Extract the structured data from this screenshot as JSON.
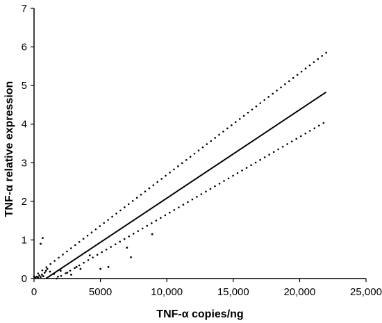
{
  "chart_data": {
    "type": "scatter",
    "title": "",
    "xlabel": "TNF-α copies/ng",
    "ylabel": "TNF-α relative expression",
    "xlim": [
      0,
      25000
    ],
    "ylim": [
      0,
      7
    ],
    "x_ticks": [
      {
        "value": 0,
        "label": "0"
      },
      {
        "value": 5000,
        "label": "5000"
      },
      {
        "value": 10000,
        "label": "10,000"
      },
      {
        "value": 15000,
        "label": "15,000"
      },
      {
        "value": 20000,
        "label": "20,000"
      },
      {
        "value": 25000,
        "label": "25,000"
      }
    ],
    "y_ticks": [
      {
        "value": 0,
        "label": "0"
      },
      {
        "value": 1,
        "label": "1"
      },
      {
        "value": 2,
        "label": "2"
      },
      {
        "value": 3,
        "label": "3"
      },
      {
        "value": 4,
        "label": "4"
      },
      {
        "value": 5,
        "label": "5"
      },
      {
        "value": 6,
        "label": "6"
      },
      {
        "value": 7,
        "label": "7"
      }
    ],
    "grid": false,
    "points": [
      {
        "x": 100,
        "y": 0.02
      },
      {
        "x": 200,
        "y": 0.05
      },
      {
        "x": 300,
        "y": 0.03
      },
      {
        "x": 400,
        "y": 0.08
      },
      {
        "x": 500,
        "y": 0.04
      },
      {
        "x": 600,
        "y": 0.1
      },
      {
        "x": 700,
        "y": 0.06
      },
      {
        "x": 800,
        "y": 0.15
      },
      {
        "x": 900,
        "y": 0.2
      },
      {
        "x": 1000,
        "y": 0.25
      },
      {
        "x": 1200,
        "y": 0.18
      },
      {
        "x": 1500,
        "y": 0.12
      },
      {
        "x": 1800,
        "y": 0.05
      },
      {
        "x": 2000,
        "y": 0.2
      },
      {
        "x": 2500,
        "y": 0.15
      },
      {
        "x": 2800,
        "y": 0.1
      },
      {
        "x": 3200,
        "y": 0.3
      },
      {
        "x": 3500,
        "y": 0.25
      },
      {
        "x": 4200,
        "y": 0.6
      },
      {
        "x": 5000,
        "y": 0.25
      },
      {
        "x": 5600,
        "y": 0.3
      },
      {
        "x": 7000,
        "y": 0.8
      },
      {
        "x": 7300,
        "y": 0.55
      },
      {
        "x": 8900,
        "y": 1.15
      },
      {
        "x": 500,
        "y": 0.9
      },
      {
        "x": 650,
        "y": 1.05
      }
    ],
    "fit_line": {
      "x": [
        900,
        22000
      ],
      "y": [
        0,
        4.83
      ]
    },
    "confidence_band": {
      "upper": {
        "x": [
          0,
          22000
        ],
        "y": [
          0.05,
          5.85
        ]
      },
      "lower": {
        "x": [
          1700,
          21800
        ],
        "y": [
          0,
          4.03
        ]
      }
    }
  }
}
